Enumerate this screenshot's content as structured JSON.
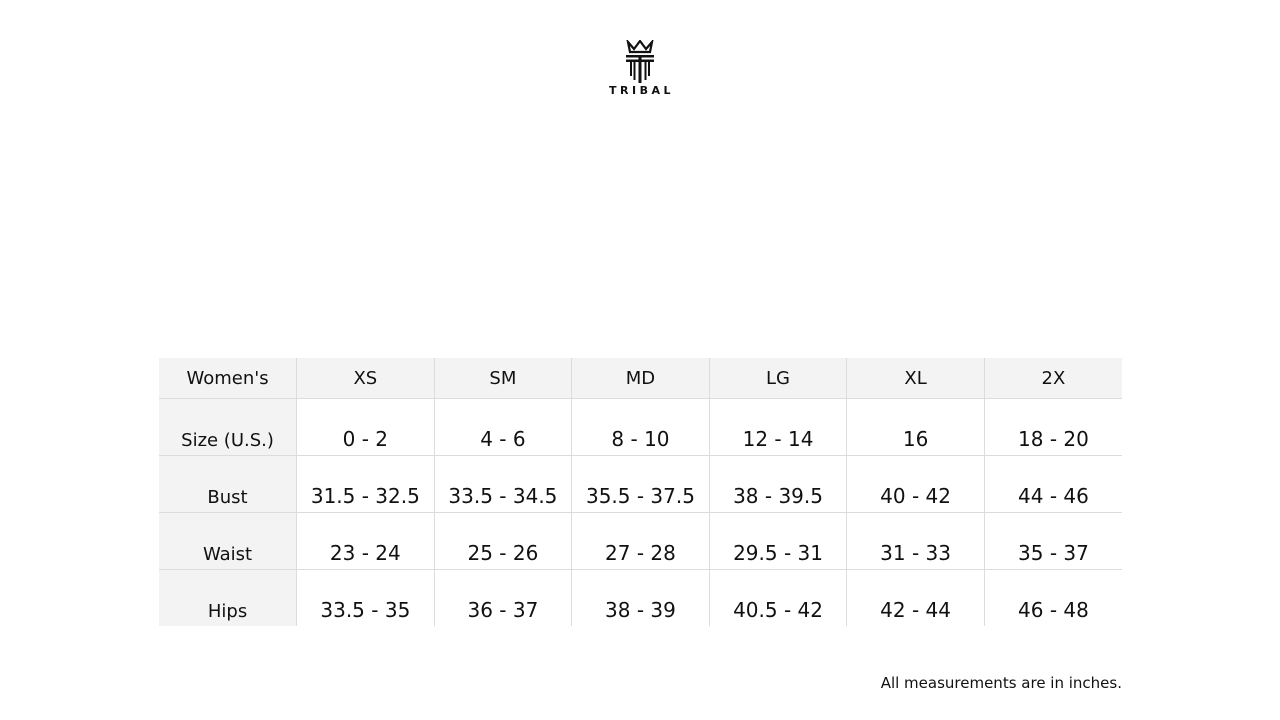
{
  "brand": {
    "name": "TRIBAL"
  },
  "table": {
    "header": [
      "Women's",
      "XS",
      "SM",
      "MD",
      "LG",
      "XL",
      "2X"
    ],
    "rows": [
      {
        "label": "Size (U.S.)",
        "values": [
          "0 - 2",
          "4 - 6",
          "8 - 10",
          "12 - 14",
          "16",
          "18 - 20"
        ]
      },
      {
        "label": "Bust",
        "values": [
          "31.5 - 32.5",
          "33.5 - 34.5",
          "35.5 - 37.5",
          "38 - 39.5",
          "40 - 42",
          "44 - 46"
        ]
      },
      {
        "label": "Waist",
        "values": [
          "23 - 24",
          "25 - 26",
          "27 - 28",
          "29.5 - 31",
          "31 - 33",
          "35 - 37"
        ]
      },
      {
        "label": "Hips",
        "values": [
          "33.5 - 35",
          "36 - 37",
          "38 - 39",
          "40.5 - 42",
          "42 - 44",
          "46 - 48"
        ]
      }
    ]
  },
  "note": "All measurements are in inches."
}
